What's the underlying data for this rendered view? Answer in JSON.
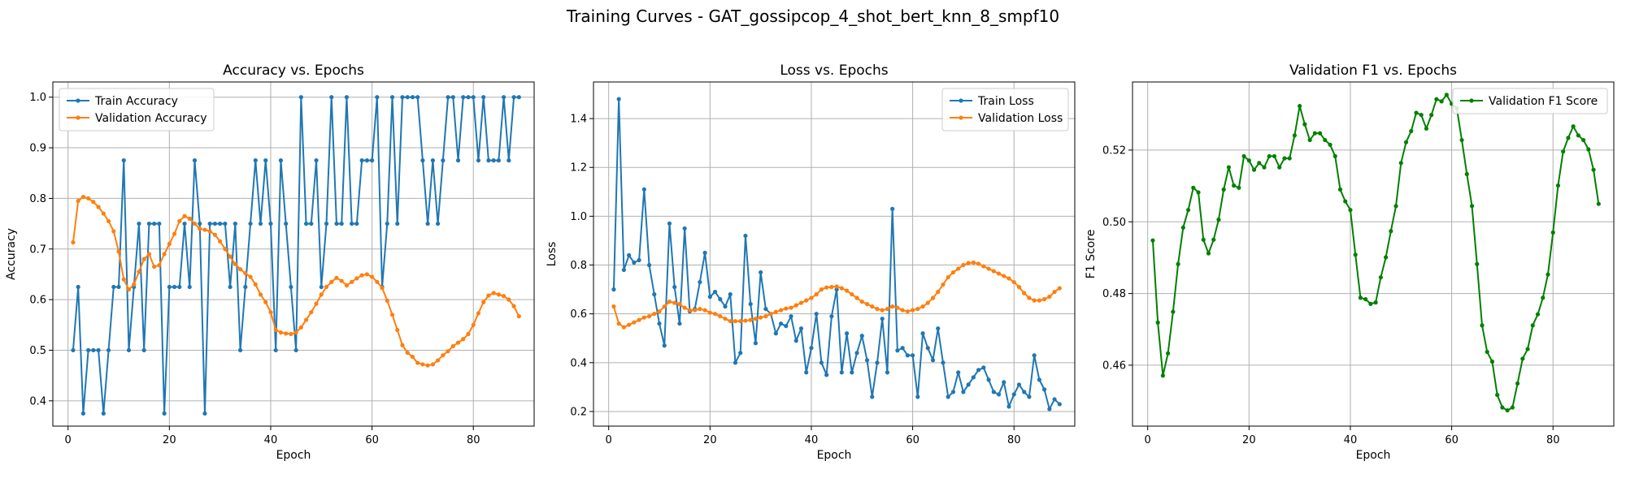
{
  "figure_title": "Training Curves - GAT_gossipcop_4_shot_bert_knn_8_smpf10",
  "chart_data": [
    {
      "type": "line",
      "title": "Accuracy vs. Epochs",
      "xlabel": "Epoch",
      "ylabel": "Accuracy",
      "xlim": [
        -3,
        92
      ],
      "ylim": [
        0.35,
        1.03
      ],
      "xticks": [
        0,
        20,
        40,
        60,
        80
      ],
      "yticks": [
        0.4,
        0.5,
        0.6,
        0.7,
        0.8,
        0.9,
        1.0
      ],
      "ytick_labels": [
        "0.4",
        "0.5",
        "0.6",
        "0.7",
        "0.8",
        "0.9",
        "1.0"
      ],
      "grid": true,
      "legend_position": "upper-left",
      "x_start": 1,
      "series": [
        {
          "name": "Train Accuracy",
          "color": "#1f77b4",
          "values": [
            0.5,
            0.625,
            0.375,
            0.5,
            0.5,
            0.5,
            0.375,
            0.5,
            0.625,
            0.625,
            0.875,
            0.5,
            0.625,
            0.75,
            0.5,
            0.75,
            0.75,
            0.75,
            0.375,
            0.625,
            0.625,
            0.625,
            0.75,
            0.625,
            0.875,
            0.75,
            0.375,
            0.75,
            0.75,
            0.75,
            0.75,
            0.625,
            0.75,
            0.5,
            0.625,
            0.75,
            0.875,
            0.75,
            0.875,
            0.75,
            0.5,
            0.875,
            0.75,
            0.625,
            0.5,
            1.0,
            0.75,
            0.75,
            0.875,
            0.625,
            0.75,
            1.0,
            0.75,
            0.75,
            1.0,
            0.75,
            0.75,
            0.875,
            0.875,
            0.875,
            1.0,
            0.625,
            0.75,
            1.0,
            0.75,
            1.0,
            1.0,
            1.0,
            1.0,
            0.875,
            0.75,
            0.875,
            0.75,
            0.875,
            1.0,
            1.0,
            0.875,
            1.0,
            1.0,
            1.0,
            0.875,
            1.0,
            0.875,
            0.875,
            0.875,
            1.0,
            0.875,
            1.0,
            1.0
          ]
        },
        {
          "name": "Validation Accuracy",
          "color": "#ff7f0e",
          "values": [
            0.713,
            0.795,
            0.803,
            0.8,
            0.793,
            0.783,
            0.77,
            0.755,
            0.735,
            0.695,
            0.64,
            0.62,
            0.63,
            0.655,
            0.68,
            0.69,
            0.665,
            0.668,
            0.69,
            0.71,
            0.73,
            0.755,
            0.765,
            0.76,
            0.75,
            0.74,
            0.738,
            0.735,
            0.728,
            0.715,
            0.7,
            0.685,
            0.67,
            0.66,
            0.652,
            0.645,
            0.63,
            0.61,
            0.595,
            0.575,
            0.54,
            0.535,
            0.533,
            0.532,
            0.535,
            0.545,
            0.56,
            0.575,
            0.592,
            0.61,
            0.625,
            0.635,
            0.643,
            0.637,
            0.628,
            0.635,
            0.642,
            0.648,
            0.65,
            0.645,
            0.635,
            0.623,
            0.598,
            0.57,
            0.54,
            0.51,
            0.495,
            0.487,
            0.475,
            0.472,
            0.47,
            0.472,
            0.48,
            0.49,
            0.498,
            0.508,
            0.515,
            0.522,
            0.532,
            0.55,
            0.573,
            0.595,
            0.608,
            0.613,
            0.61,
            0.607,
            0.6,
            0.587,
            0.567
          ]
        }
      ]
    },
    {
      "type": "line",
      "title": "Loss vs. Epochs",
      "xlabel": "Epoch",
      "ylabel": "Loss",
      "xlim": [
        -3,
        92
      ],
      "ylim": [
        0.14,
        1.55
      ],
      "xticks": [
        0,
        20,
        40,
        60,
        80
      ],
      "yticks": [
        0.2,
        0.4,
        0.6,
        0.8,
        1.0,
        1.2,
        1.4
      ],
      "ytick_labels": [
        "0.2",
        "0.4",
        "0.6",
        "0.8",
        "1.0",
        "1.2",
        "1.4"
      ],
      "grid": true,
      "legend_position": "upper-right",
      "x_start": 1,
      "series": [
        {
          "name": "Train Loss",
          "color": "#1f77b4",
          "values": [
            0.7,
            1.48,
            0.78,
            0.84,
            0.81,
            0.82,
            1.11,
            0.8,
            0.68,
            0.56,
            0.47,
            0.97,
            0.71,
            0.56,
            0.95,
            0.61,
            0.62,
            0.73,
            0.85,
            0.67,
            0.69,
            0.66,
            0.63,
            0.68,
            0.4,
            0.44,
            0.92,
            0.64,
            0.48,
            0.77,
            0.62,
            0.6,
            0.52,
            0.56,
            0.55,
            0.59,
            0.49,
            0.54,
            0.36,
            0.46,
            0.6,
            0.4,
            0.35,
            0.59,
            0.7,
            0.36,
            0.52,
            0.36,
            0.44,
            0.51,
            0.41,
            0.26,
            0.4,
            0.58,
            0.36,
            1.03,
            0.45,
            0.46,
            0.43,
            0.43,
            0.26,
            0.52,
            0.46,
            0.41,
            0.54,
            0.4,
            0.26,
            0.28,
            0.36,
            0.28,
            0.31,
            0.34,
            0.37,
            0.38,
            0.33,
            0.28,
            0.27,
            0.32,
            0.22,
            0.27,
            0.31,
            0.28,
            0.26,
            0.43,
            0.33,
            0.29,
            0.21,
            0.25,
            0.23
          ]
        },
        {
          "name": "Validation Loss",
          "color": "#ff7f0e",
          "values": [
            0.63,
            0.56,
            0.545,
            0.555,
            0.565,
            0.575,
            0.585,
            0.59,
            0.6,
            0.61,
            0.63,
            0.65,
            0.645,
            0.64,
            0.625,
            0.615,
            0.615,
            0.62,
            0.615,
            0.605,
            0.6,
            0.59,
            0.58,
            0.57,
            0.57,
            0.57,
            0.572,
            0.575,
            0.58,
            0.585,
            0.59,
            0.6,
            0.608,
            0.615,
            0.622,
            0.625,
            0.635,
            0.645,
            0.655,
            0.665,
            0.68,
            0.7,
            0.708,
            0.71,
            0.712,
            0.705,
            0.695,
            0.68,
            0.665,
            0.65,
            0.64,
            0.63,
            0.62,
            0.615,
            0.62,
            0.63,
            0.625,
            0.615,
            0.61,
            0.615,
            0.62,
            0.63,
            0.645,
            0.665,
            0.69,
            0.72,
            0.75,
            0.77,
            0.785,
            0.8,
            0.808,
            0.81,
            0.805,
            0.795,
            0.785,
            0.775,
            0.765,
            0.755,
            0.745,
            0.73,
            0.71,
            0.685,
            0.665,
            0.655,
            0.655,
            0.66,
            0.67,
            0.69,
            0.705
          ]
        }
      ]
    },
    {
      "type": "line",
      "title": "Validation F1 vs. Epochs",
      "xlabel": "Epoch",
      "ylabel": "F1 Score",
      "xlim": [
        -3,
        92
      ],
      "ylim": [
        0.443,
        0.539
      ],
      "xticks": [
        0,
        20,
        40,
        60,
        80
      ],
      "yticks": [
        0.46,
        0.48,
        0.5,
        0.52
      ],
      "ytick_labels": [
        "0.46",
        "0.48",
        "0.50",
        "0.52"
      ],
      "grid": true,
      "legend_position": "upper-right",
      "x_start": 1,
      "series": [
        {
          "name": "Validation F1 Score",
          "color": "#008000",
          "values": [
            0.4948,
            0.4719,
            0.4571,
            0.4633,
            0.4749,
            0.4882,
            0.4984,
            0.5033,
            0.5095,
            0.5082,
            0.495,
            0.4912,
            0.495,
            0.5006,
            0.509,
            0.5152,
            0.5101,
            0.5095,
            0.5183,
            0.5171,
            0.5145,
            0.5164,
            0.5152,
            0.5183,
            0.5183,
            0.5152,
            0.5177,
            0.5177,
            0.5241,
            0.5323,
            0.5272,
            0.5228,
            0.5247,
            0.5247,
            0.5228,
            0.5215,
            0.5183,
            0.509,
            0.5057,
            0.5033,
            0.4908,
            0.4788,
            0.4784,
            0.4771,
            0.4775,
            0.4845,
            0.4901,
            0.4974,
            0.5044,
            0.5164,
            0.5222,
            0.5253,
            0.5304,
            0.5298,
            0.526,
            0.5298,
            0.5342,
            0.5336,
            0.5354,
            0.5329,
            0.5317,
            0.5228,
            0.5133,
            0.5044,
            0.4882,
            0.4711,
            0.4637,
            0.461,
            0.4517,
            0.4482,
            0.4474,
            0.4482,
            0.4549,
            0.4618,
            0.4645,
            0.4711,
            0.4742,
            0.4788,
            0.4853,
            0.497,
            0.5101,
            0.5196,
            0.5234,
            0.5266,
            0.5241,
            0.5228,
            0.5202,
            0.5145,
            0.505
          ]
        }
      ]
    }
  ]
}
